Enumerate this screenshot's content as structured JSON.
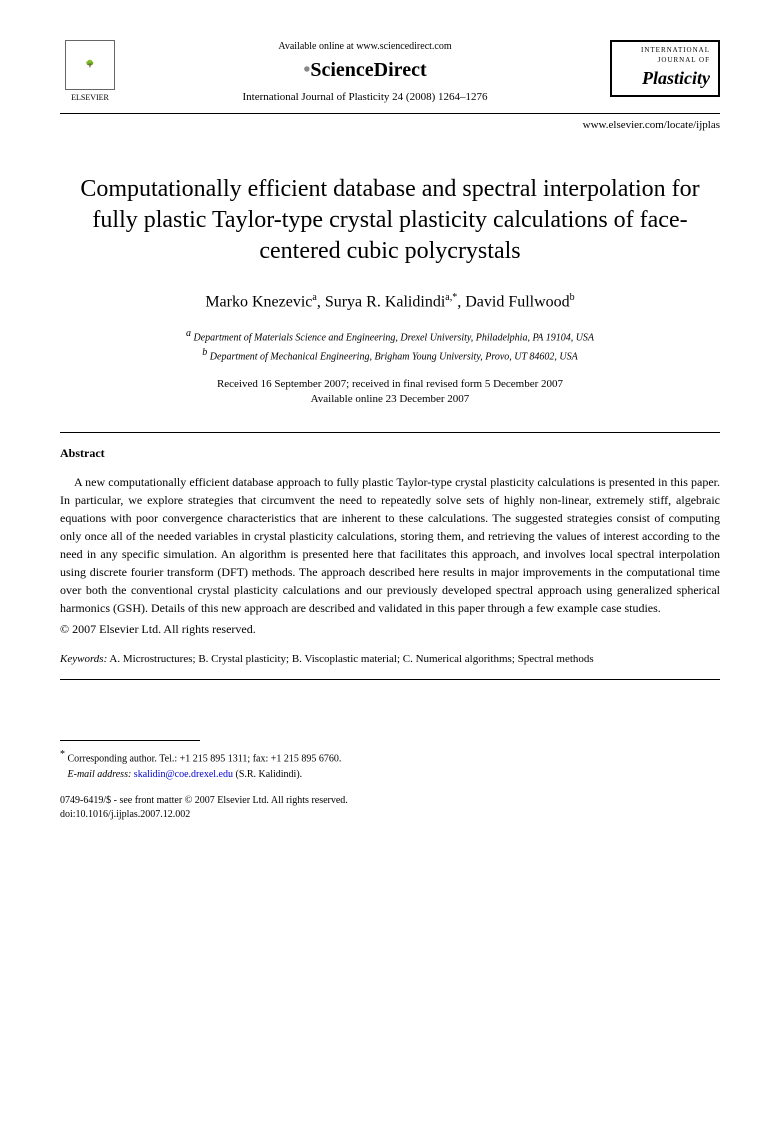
{
  "header": {
    "elsevier_label": "ELSEVIER",
    "available_text": "Available online at www.sciencedirect.com",
    "sciencedirect": "ScienceDirect",
    "journal_ref": "International Journal of Plasticity 24 (2008) 1264–1276",
    "plasticity_small": "INTERNATIONAL JOURNAL OF",
    "plasticity_big": "Plasticity",
    "locate_url": "www.elsevier.com/locate/ijplas"
  },
  "title": "Computationally efficient database and spectral interpolation for fully plastic Taylor-type crystal plasticity calculations of face-centered cubic polycrystals",
  "authors": {
    "a1_name": "Marko Knezevic",
    "a1_sup": "a",
    "a2_name": "Surya R. Kalidindi",
    "a2_sup": "a,*",
    "a3_name": "David Fullwood",
    "a3_sup": "b"
  },
  "affiliations": {
    "a": "Department of Materials Science and Engineering, Drexel University, Philadelphia, PA 19104, USA",
    "b": "Department of Mechanical Engineering, Brigham Young University, Provo, UT 84602, USA"
  },
  "dates": {
    "received": "Received 16 September 2007; received in final revised form 5 December 2007",
    "online": "Available online 23 December 2007"
  },
  "abstract": {
    "heading": "Abstract",
    "text": "A new computationally efficient database approach to fully plastic Taylor-type crystal plasticity calculations is presented in this paper. In particular, we explore strategies that circumvent the need to repeatedly solve sets of highly non-linear, extremely stiff, algebraic equations with poor convergence characteristics that are inherent to these calculations. The suggested strategies consist of computing only once all of the needed variables in crystal plasticity calculations, storing them, and retrieving the values of interest according to the need in any specific simulation. An algorithm is presented here that facilitates this approach, and involves local spectral interpolation using discrete fourier transform (DFT) methods. The approach described here results in major improvements in the computational time over both the conventional crystal plasticity calculations and our previously developed spectral approach using generalized spherical harmonics (GSH). Details of this new approach are described and validated in this paper through a few example case studies.",
    "copyright": "© 2007 Elsevier Ltd. All rights reserved."
  },
  "keywords": {
    "label": "Keywords:",
    "text": "A. Microstructures; B. Crystal plasticity; B. Viscoplastic material; C. Numerical algorithms; Spectral methods"
  },
  "corresponding": {
    "label": "Corresponding author. Tel.: +1 215 895 1311; fax: +1 215 895 6760.",
    "email_label": "E-mail address:",
    "email": "skalidin@coe.drexel.edu",
    "email_name": "(S.R. Kalidindi)."
  },
  "footer": {
    "issn": "0749-6419/$ - see front matter © 2007 Elsevier Ltd. All rights reserved.",
    "doi": "doi:10.1016/j.ijplas.2007.12.002"
  }
}
